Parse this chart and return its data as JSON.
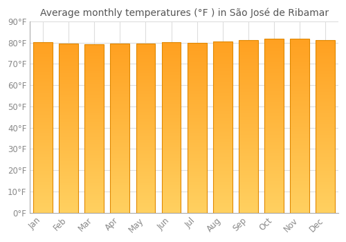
{
  "title": "Average monthly temperatures (°F ) in São José de Ribamar",
  "months": [
    "Jan",
    "Feb",
    "Mar",
    "Apr",
    "May",
    "Jun",
    "Jul",
    "Aug",
    "Sep",
    "Oct",
    "Nov",
    "Dec"
  ],
  "values": [
    80.2,
    79.5,
    79.3,
    79.7,
    79.7,
    80.1,
    79.9,
    80.6,
    81.3,
    81.7,
    81.9,
    81.1
  ],
  "ylim": [
    0,
    90
  ],
  "yticks": [
    0,
    10,
    20,
    30,
    40,
    50,
    60,
    70,
    80,
    90
  ],
  "ytick_labels": [
    "0°F",
    "10°F",
    "20°F",
    "30°F",
    "40°F",
    "50°F",
    "60°F",
    "70°F",
    "80°F",
    "90°F"
  ],
  "bar_color_bottom": "#FFD060",
  "bar_color_top": "#FFA020",
  "bar_edge_color": "#E08800",
  "background_color": "#ffffff",
  "plot_bg_color": "#ffffff",
  "grid_color": "#dddddd",
  "title_fontsize": 10,
  "tick_fontsize": 8.5,
  "label_color": "#888888",
  "figsize": [
    5.0,
    3.5
  ],
  "dpi": 100
}
